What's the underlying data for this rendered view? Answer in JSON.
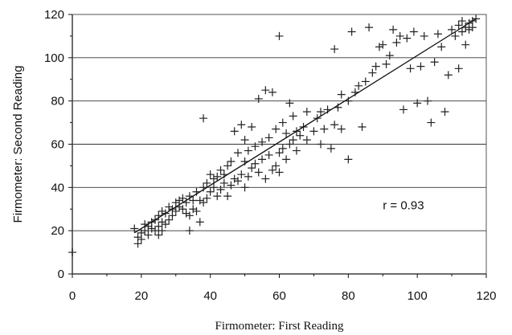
{
  "chart_data": {
    "type": "scatter",
    "xlabel": "Firmometer: First Reading",
    "ylabel": "Firmometer: Second Reading",
    "xlim": [
      0,
      120
    ],
    "ylim": [
      0,
      120
    ],
    "xticks": [
      "0",
      "20",
      "40",
      "60",
      "80",
      "100",
      "120"
    ],
    "yticks": [
      "0",
      "20",
      "40",
      "60",
      "80",
      "100",
      "120"
    ],
    "grid": "horizontal",
    "annotation": "r = 0.93",
    "fit_line": {
      "x": [
        18,
        117
      ],
      "y": [
        19,
        118
      ]
    },
    "series": [
      {
        "marker": "plus",
        "points": [
          [
            0,
            10
          ],
          [
            18,
            21
          ],
          [
            19,
            14
          ],
          [
            19,
            17
          ],
          [
            20,
            16
          ],
          [
            20,
            19
          ],
          [
            21,
            20
          ],
          [
            21,
            23
          ],
          [
            22,
            18
          ],
          [
            22,
            22
          ],
          [
            23,
            21
          ],
          [
            23,
            24
          ],
          [
            24,
            20
          ],
          [
            24,
            25
          ],
          [
            25,
            18
          ],
          [
            25,
            22
          ],
          [
            25,
            27
          ],
          [
            26,
            20
          ],
          [
            26,
            24
          ],
          [
            26,
            29
          ],
          [
            27,
            23
          ],
          [
            27,
            28
          ],
          [
            28,
            25
          ],
          [
            28,
            31
          ],
          [
            29,
            27
          ],
          [
            29,
            30
          ],
          [
            30,
            29
          ],
          [
            30,
            33
          ],
          [
            31,
            31
          ],
          [
            31,
            34
          ],
          [
            32,
            30
          ],
          [
            32,
            35
          ],
          [
            33,
            28
          ],
          [
            33,
            33
          ],
          [
            34,
            20
          ],
          [
            34,
            27
          ],
          [
            34,
            36
          ],
          [
            35,
            30
          ],
          [
            35,
            34
          ],
          [
            36,
            29
          ],
          [
            36,
            38
          ],
          [
            37,
            24
          ],
          [
            37,
            34
          ],
          [
            38,
            33
          ],
          [
            38,
            40
          ],
          [
            38,
            72
          ],
          [
            39,
            35
          ],
          [
            39,
            42
          ],
          [
            40,
            38
          ],
          [
            40,
            46
          ],
          [
            41,
            40
          ],
          [
            41,
            44
          ],
          [
            42,
            36
          ],
          [
            42,
            45
          ],
          [
            43,
            39
          ],
          [
            43,
            48
          ],
          [
            44,
            42
          ],
          [
            44,
            46
          ],
          [
            45,
            36
          ],
          [
            45,
            50
          ],
          [
            46,
            41
          ],
          [
            46,
            52
          ],
          [
            47,
            44
          ],
          [
            47,
            66
          ],
          [
            48,
            43
          ],
          [
            48,
            56
          ],
          [
            49,
            46
          ],
          [
            49,
            69
          ],
          [
            50,
            40
          ],
          [
            50,
            52
          ],
          [
            50,
            62
          ],
          [
            51,
            45
          ],
          [
            51,
            57
          ],
          [
            52,
            49
          ],
          [
            52,
            68
          ],
          [
            53,
            51
          ],
          [
            53,
            59
          ],
          [
            54,
            47
          ],
          [
            54,
            81
          ],
          [
            55,
            53
          ],
          [
            55,
            61
          ],
          [
            56,
            44
          ],
          [
            56,
            85
          ],
          [
            57,
            55
          ],
          [
            57,
            63
          ],
          [
            58,
            48
          ],
          [
            58,
            84
          ],
          [
            59,
            50
          ],
          [
            59,
            67
          ],
          [
            60,
            47
          ],
          [
            60,
            56
          ],
          [
            60,
            110
          ],
          [
            61,
            58
          ],
          [
            61,
            70
          ],
          [
            62,
            53
          ],
          [
            62,
            65
          ],
          [
            63,
            60
          ],
          [
            63,
            79
          ],
          [
            64,
            62
          ],
          [
            64,
            73
          ],
          [
            65,
            57
          ],
          [
            65,
            66
          ],
          [
            66,
            64
          ],
          [
            67,
            68
          ],
          [
            68,
            62
          ],
          [
            68,
            75
          ],
          [
            70,
            66
          ],
          [
            71,
            72
          ],
          [
            72,
            60
          ],
          [
            72,
            75
          ],
          [
            73,
            67
          ],
          [
            74,
            76
          ],
          [
            75,
            58
          ],
          [
            76,
            69
          ],
          [
            76,
            104
          ],
          [
            77,
            77
          ],
          [
            78,
            67
          ],
          [
            78,
            83
          ],
          [
            80,
            53
          ],
          [
            80,
            80
          ],
          [
            81,
            112
          ],
          [
            82,
            84
          ],
          [
            83,
            87
          ],
          [
            84,
            68
          ],
          [
            85,
            89
          ],
          [
            86,
            114
          ],
          [
            87,
            93
          ],
          [
            88,
            96
          ],
          [
            89,
            105
          ],
          [
            90,
            106
          ],
          [
            91,
            97
          ],
          [
            92,
            101
          ],
          [
            93,
            113
          ],
          [
            94,
            107
          ],
          [
            95,
            110
          ],
          [
            96,
            76
          ],
          [
            97,
            109
          ],
          [
            98,
            95
          ],
          [
            99,
            112
          ],
          [
            100,
            79
          ],
          [
            101,
            96
          ],
          [
            102,
            110
          ],
          [
            103,
            80
          ],
          [
            104,
            70
          ],
          [
            105,
            98
          ],
          [
            106,
            111
          ],
          [
            107,
            105
          ],
          [
            108,
            75
          ],
          [
            109,
            92
          ],
          [
            110,
            113
          ],
          [
            111,
            110
          ],
          [
            112,
            115
          ],
          [
            112,
            95
          ],
          [
            113,
            117
          ],
          [
            113,
            112
          ],
          [
            114,
            114
          ],
          [
            114,
            106
          ],
          [
            115,
            116
          ],
          [
            115,
            113
          ],
          [
            116,
            117
          ],
          [
            116,
            114
          ],
          [
            117,
            118
          ]
        ]
      }
    ]
  }
}
